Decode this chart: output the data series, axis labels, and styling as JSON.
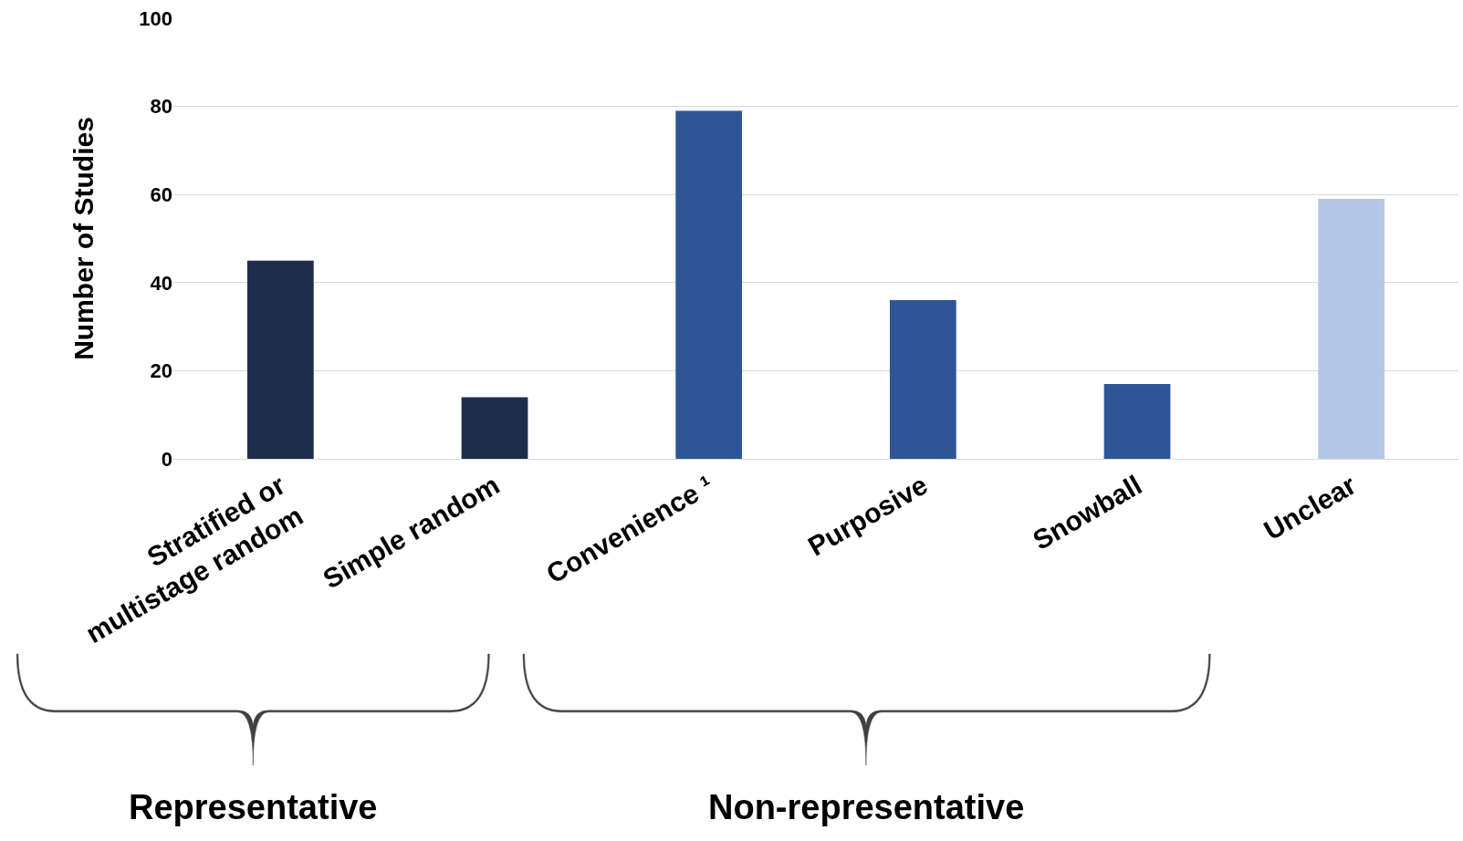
{
  "chart_data": {
    "type": "bar",
    "ylabel": "Number of Studies",
    "categories": [
      "Stratified or\nmultistage random",
      "Simple random",
      "Convenience ¹",
      "Purposive",
      "Snowball",
      "Unclear"
    ],
    "values": [
      45,
      14,
      79,
      36,
      17,
      59
    ],
    "colors": [
      "#1f2d4d",
      "#1f2d4d",
      "#2f5597",
      "#2f5597",
      "#2f5597",
      "#b4c7e7"
    ],
    "ylim": [
      0,
      100
    ],
    "yticks": [
      0,
      20,
      40,
      60,
      80,
      100
    ],
    "grid": "y",
    "annotations": [
      "Representative",
      "Non-representative"
    ]
  }
}
